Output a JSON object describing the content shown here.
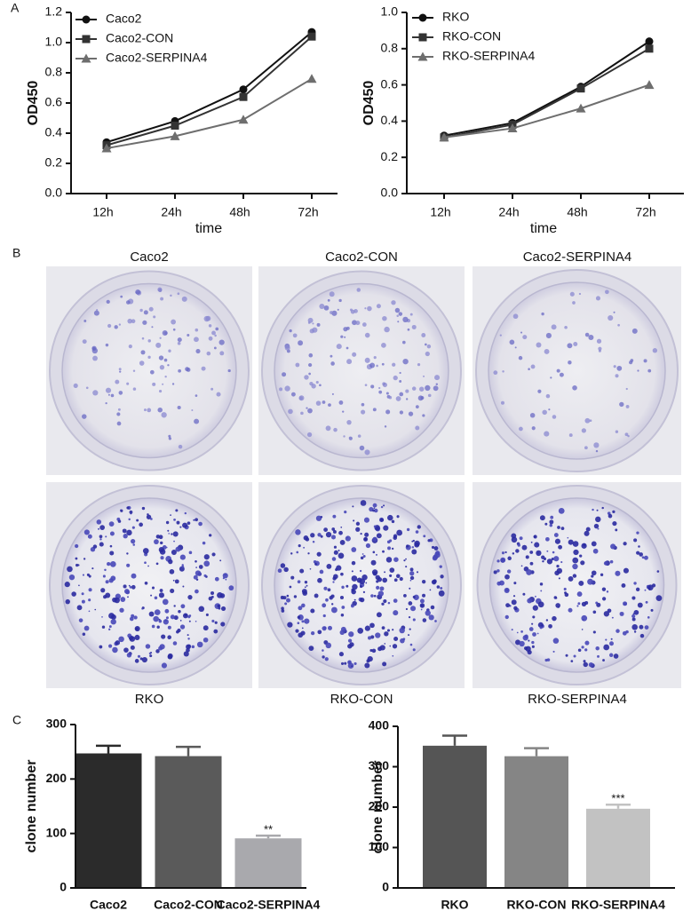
{
  "panel_labels": [
    "A",
    "B",
    "C"
  ],
  "wells": {
    "top_labels": [
      "Caco2",
      "Caco2-CON",
      "Caco2-SERPINA4"
    ],
    "bottom_labels": [
      "RKO",
      "RKO-CON",
      "RKO-SERPINA4"
    ]
  },
  "chart_data": [
    {
      "type": "line",
      "xlabel": "time",
      "ylabel": "OD450",
      "categories": [
        "12h",
        "24h",
        "48h",
        "72h"
      ],
      "ylim": [
        0,
        1.2
      ],
      "yticks": [
        {
          "value": 0,
          "label": "0.0"
        },
        0.2,
        0.4,
        0.6,
        0.8,
        {
          "value": 1,
          "label": "1.0"
        },
        1.2
      ],
      "series": [
        {
          "name": "Caco2",
          "color": "#111111",
          "marker": "circle",
          "values": [
            0.34,
            0.48,
            0.69,
            1.07
          ]
        },
        {
          "name": "Caco2-CON",
          "color": "#333333",
          "marker": "square",
          "values": [
            0.32,
            0.45,
            0.64,
            1.04
          ]
        },
        {
          "name": "Caco2-SERPINA4",
          "color": "#6e6e6e",
          "marker": "triangle",
          "values": [
            0.3,
            0.38,
            0.49,
            0.76
          ]
        }
      ]
    },
    {
      "type": "line",
      "xlabel": "time",
      "ylabel": "OD450",
      "categories": [
        "12h",
        "24h",
        "48h",
        "72h"
      ],
      "ylim": [
        0,
        1.0
      ],
      "yticks": [
        {
          "value": 0,
          "label": "0.0"
        },
        0.2,
        0.4,
        0.6,
        0.8,
        {
          "value": 1,
          "label": "1.0"
        }
      ],
      "series": [
        {
          "name": "RKO",
          "color": "#111111",
          "marker": "circle",
          "values": [
            0.32,
            0.39,
            0.59,
            0.84
          ]
        },
        {
          "name": "RKO-CON",
          "color": "#333333",
          "marker": "square",
          "values": [
            0.31,
            0.38,
            0.58,
            0.8
          ]
        },
        {
          "name": "RKO-SERPINA4",
          "color": "#6e6e6e",
          "marker": "triangle",
          "values": [
            0.31,
            0.36,
            0.47,
            0.6
          ]
        }
      ]
    },
    {
      "type": "bar",
      "ylabel": "clone number",
      "categories": [
        "Caco2",
        "Caco2-CON",
        "Caco2-SERPINA4"
      ],
      "values": [
        247,
        242,
        91
      ],
      "errors": [
        14,
        17,
        5
      ],
      "significance": [
        null,
        null,
        "**"
      ],
      "colors": [
        "#2b2b2b",
        "#5a5a5a",
        "#a9a9ad"
      ],
      "ylim": [
        0,
        300
      ],
      "yticks": [
        0,
        100,
        200,
        300
      ]
    },
    {
      "type": "bar",
      "ylabel": "clone number",
      "categories": [
        "RKO",
        "RKO-CON",
        "RKO-SERPINA4"
      ],
      "values": [
        352,
        326,
        196
      ],
      "errors": [
        25,
        20,
        10
      ],
      "significance": [
        null,
        null,
        "***"
      ],
      "colors": [
        "#555555",
        "#858585",
        "#c2c2c2"
      ],
      "ylim": [
        0,
        400
      ],
      "yticks": [
        0,
        100,
        200,
        300,
        400
      ]
    }
  ]
}
